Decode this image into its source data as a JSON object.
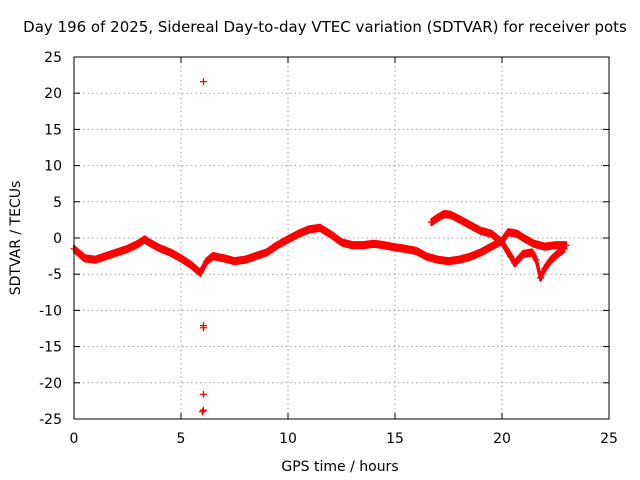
{
  "chart_data": {
    "type": "scatter",
    "title": "Day 196 of 2025, Sidereal Day-to-day VTEC variation (SDTVAR) for receiver pots",
    "xlabel": "GPS time / hours",
    "ylabel": "SDTVAR / TECUs",
    "xlim": [
      0,
      25
    ],
    "ylim": [
      -25,
      25
    ],
    "xticks": [
      0,
      5,
      10,
      15,
      20,
      25
    ],
    "yticks": [
      -25,
      -20,
      -15,
      -10,
      -5,
      0,
      5,
      10,
      15,
      20,
      25
    ],
    "grid": true,
    "marker_color": "#ff0000",
    "series": [
      {
        "name": "main-band",
        "points": [
          [
            0,
            -1.5
          ],
          [
            0.5,
            -2.8
          ],
          [
            1,
            -3.0
          ],
          [
            1.5,
            -2.5
          ],
          [
            2,
            -2.0
          ],
          [
            2.5,
            -1.5
          ],
          [
            3,
            -0.8
          ],
          [
            3.3,
            -0.2
          ],
          [
            3.5,
            -0.6
          ],
          [
            4,
            -1.4
          ],
          [
            4.5,
            -2.0
          ],
          [
            5,
            -2.8
          ],
          [
            5.5,
            -3.8
          ],
          [
            5.9,
            -4.8
          ],
          [
            6.2,
            -3.2
          ],
          [
            6.5,
            -2.5
          ],
          [
            7,
            -2.8
          ],
          [
            7.5,
            -3.2
          ],
          [
            8,
            -3.0
          ],
          [
            8.5,
            -2.5
          ],
          [
            9,
            -2.0
          ],
          [
            9.5,
            -1.0
          ],
          [
            10,
            -0.2
          ],
          [
            10.5,
            0.6
          ],
          [
            11,
            1.2
          ],
          [
            11.5,
            1.4
          ],
          [
            12,
            0.5
          ],
          [
            12.5,
            -0.6
          ],
          [
            13,
            -1.0
          ],
          [
            13.5,
            -1.0
          ],
          [
            14,
            -0.8
          ],
          [
            14.5,
            -1.0
          ],
          [
            15,
            -1.3
          ],
          [
            15.5,
            -1.5
          ],
          [
            16,
            -1.8
          ],
          [
            16.5,
            -2.6
          ],
          [
            17,
            -3.0
          ],
          [
            17.5,
            -3.2
          ],
          [
            18,
            -3.0
          ],
          [
            18.5,
            -2.6
          ],
          [
            19,
            -2.0
          ],
          [
            19.5,
            -1.2
          ],
          [
            20,
            -0.4
          ],
          [
            20.3,
            0.8
          ],
          [
            20.7,
            0.6
          ],
          [
            21,
            0.0
          ],
          [
            21.5,
            -0.8
          ],
          [
            22,
            -1.2
          ],
          [
            22.5,
            -1.0
          ],
          [
            23,
            -1.0
          ]
        ]
      },
      {
        "name": "side-branch",
        "points": [
          [
            16.7,
            2.2
          ],
          [
            17,
            2.8
          ],
          [
            17.3,
            3.3
          ],
          [
            17.6,
            3.2
          ],
          [
            18,
            2.6
          ],
          [
            18.5,
            1.8
          ],
          [
            19,
            1.0
          ],
          [
            19.5,
            0.6
          ],
          [
            20,
            -0.6
          ],
          [
            20.4,
            -2.5
          ],
          [
            20.6,
            -3.5
          ],
          [
            21,
            -2.2
          ],
          [
            21.4,
            -2.0
          ],
          [
            21.6,
            -3.0
          ],
          [
            21.8,
            -5.5
          ],
          [
            22,
            -4.2
          ],
          [
            22.3,
            -3.0
          ],
          [
            22.6,
            -2.2
          ],
          [
            22.9,
            -1.5
          ]
        ]
      },
      {
        "name": "outliers",
        "points": [
          [
            6.05,
            21.6
          ],
          [
            6.05,
            -12.1
          ],
          [
            6.05,
            -12.4
          ],
          [
            6.05,
            -21.6
          ],
          [
            6.05,
            -23.8
          ],
          [
            6.0,
            -24.0
          ]
        ]
      }
    ]
  }
}
